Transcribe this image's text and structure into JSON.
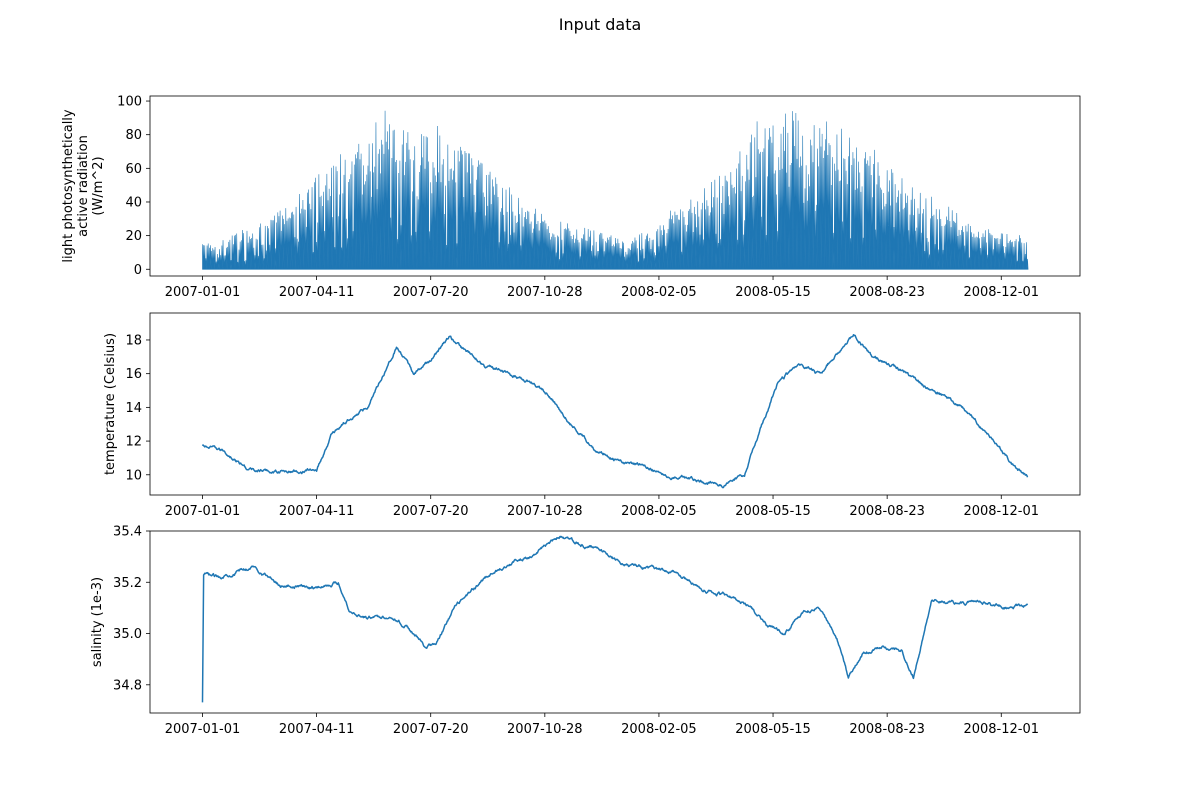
{
  "figure": {
    "title": "Input data"
  },
  "colors": {
    "series": "#1f77b4",
    "axes": "#000000",
    "background": "#ffffff"
  },
  "chart_data": [
    {
      "type": "area",
      "title": "",
      "xlabel": "",
      "ylabel_lines": [
        "light photosynthetically",
        "active radiation",
        "(W/m^2)"
      ],
      "xlim": [
        "2006-11-16",
        "2009-02-08"
      ],
      "ylim": [
        -4,
        103
      ],
      "x_ticks": [
        "2007-01-01",
        "2007-04-11",
        "2007-07-20",
        "2007-10-28",
        "2008-02-05",
        "2008-05-15",
        "2008-08-23",
        "2008-12-01"
      ],
      "y_ticks": [
        0,
        20,
        40,
        60,
        80,
        100
      ],
      "grid": false,
      "series": [
        {
          "description": "daily peak value; series drops to 0 each night",
          "x": [
            "2007-01-01",
            "2007-02-01",
            "2007-03-01",
            "2007-04-01",
            "2007-05-01",
            "2007-06-01",
            "2007-07-01",
            "2007-08-01",
            "2007-09-01",
            "2007-10-01",
            "2007-11-01",
            "2007-12-01",
            "2008-01-01",
            "2008-02-01",
            "2008-03-01",
            "2008-04-01",
            "2008-05-01",
            "2008-06-01",
            "2008-07-01",
            "2008-08-01",
            "2008-09-01",
            "2008-10-01",
            "2008-11-01",
            "2008-12-01",
            "2008-12-24"
          ],
          "values": [
            15,
            22,
            30,
            50,
            70,
            88,
            85,
            80,
            65,
            45,
            32,
            25,
            20,
            25,
            40,
            60,
            85,
            95,
            85,
            72,
            58,
            45,
            30,
            22,
            20
          ]
        }
      ]
    },
    {
      "type": "line",
      "title": "",
      "xlabel": "",
      "ylabel_lines": [
        "temperature (Celsius)"
      ],
      "xlim": [
        "2006-11-16",
        "2009-02-08"
      ],
      "ylim": [
        8.8,
        19.6
      ],
      "x_ticks": [
        "2007-01-01",
        "2007-04-11",
        "2007-07-20",
        "2007-10-28",
        "2008-02-05",
        "2008-05-15",
        "2008-08-23",
        "2008-12-01"
      ],
      "y_ticks": [
        10,
        12,
        14,
        16,
        18
      ],
      "grid": false,
      "series": [
        {
          "x": [
            "2007-01-01",
            "2007-01-20",
            "2007-02-10",
            "2007-03-01",
            "2007-03-25",
            "2007-04-11",
            "2007-04-25",
            "2007-05-10",
            "2007-05-25",
            "2007-06-05",
            "2007-06-20",
            "2007-07-05",
            "2007-07-20",
            "2007-08-05",
            "2007-08-20",
            "2007-09-05",
            "2007-09-25",
            "2007-10-15",
            "2007-11-01",
            "2007-11-20",
            "2007-12-10",
            "2008-01-01",
            "2008-01-25",
            "2008-02-10",
            "2008-03-01",
            "2008-03-15",
            "2008-04-01",
            "2008-04-20",
            "2008-05-05",
            "2008-05-20",
            "2008-06-05",
            "2008-06-25",
            "2008-07-10",
            "2008-07-25",
            "2008-08-10",
            "2008-08-25",
            "2008-09-10",
            "2008-10-01",
            "2008-10-25",
            "2008-11-20",
            "2008-12-10",
            "2008-12-24"
          ],
          "values": [
            11.7,
            11.4,
            10.3,
            10.2,
            10.2,
            10.3,
            12.5,
            13.3,
            14.0,
            15.5,
            17.6,
            16.0,
            16.8,
            18.2,
            17.3,
            16.5,
            16.0,
            15.6,
            14.7,
            13.0,
            11.6,
            10.8,
            10.5,
            10.0,
            9.8,
            9.6,
            9.4,
            10.0,
            13.0,
            15.5,
            16.5,
            16.0,
            17.2,
            18.3,
            17.0,
            16.5,
            16.0,
            15.0,
            14.2,
            12.4,
            10.7,
            9.9
          ]
        }
      ]
    },
    {
      "type": "line",
      "title": "",
      "xlabel": "",
      "ylabel_lines": [
        "salinity (1e-3)"
      ],
      "xlim": [
        "2006-11-16",
        "2009-02-08"
      ],
      "ylim": [
        34.69,
        35.4
      ],
      "x_ticks": [
        "2007-01-01",
        "2007-04-11",
        "2007-07-20",
        "2007-10-28",
        "2008-02-05",
        "2008-05-15",
        "2008-08-23",
        "2008-12-01"
      ],
      "y_ticks": [
        34.8,
        35.0,
        35.2,
        35.4
      ],
      "grid": false,
      "series": [
        {
          "x": [
            "2007-01-01",
            "2007-01-02",
            "2007-01-03",
            "2007-01-15",
            "2007-02-15",
            "2007-03-10",
            "2007-04-11",
            "2007-04-30",
            "2007-05-10",
            "2007-05-25",
            "2007-06-15",
            "2007-07-01",
            "2007-07-15",
            "2007-07-25",
            "2007-08-10",
            "2007-09-01",
            "2007-09-25",
            "2007-10-20",
            "2007-11-10",
            "2007-12-01",
            "2007-12-15",
            "2008-01-05",
            "2008-02-01",
            "2008-02-20",
            "2008-03-15",
            "2008-04-05",
            "2008-04-25",
            "2008-05-10",
            "2008-05-25",
            "2008-06-10",
            "2008-06-25",
            "2008-07-10",
            "2008-07-20",
            "2008-08-01",
            "2008-08-20",
            "2008-09-05",
            "2008-09-15",
            "2008-10-01",
            "2008-10-20",
            "2008-11-15",
            "2008-12-10",
            "2008-12-24"
          ],
          "values": [
            34.73,
            35.22,
            35.23,
            35.22,
            35.26,
            35.19,
            35.18,
            35.2,
            35.09,
            35.06,
            35.07,
            35.02,
            34.95,
            34.96,
            35.1,
            35.2,
            35.27,
            35.31,
            35.38,
            35.34,
            35.33,
            35.27,
            35.25,
            35.24,
            35.17,
            35.15,
            35.1,
            35.03,
            35.0,
            35.08,
            35.1,
            34.98,
            34.83,
            34.92,
            34.95,
            34.93,
            34.83,
            35.13,
            35.12,
            35.12,
            35.1,
            35.11
          ]
        }
      ]
    }
  ]
}
